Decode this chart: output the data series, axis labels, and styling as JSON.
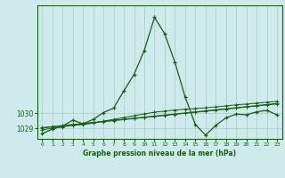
{
  "title": "Graphe pression niveau de la mer (hPa)",
  "background_color": "#ceeaea",
  "grid_color": "#aacccc",
  "line_color": "#1a5c1a",
  "xlim": [
    -0.5,
    23.5
  ],
  "ylim": [
    1028.3,
    1037.2
  ],
  "yticks": [
    1029,
    1030
  ],
  "xticks": [
    0,
    1,
    2,
    3,
    4,
    5,
    6,
    7,
    8,
    9,
    10,
    11,
    12,
    13,
    14,
    15,
    16,
    17,
    18,
    19,
    20,
    21,
    22,
    23
  ],
  "series1": [
    1028.65,
    1028.95,
    1029.15,
    1029.55,
    1029.3,
    1029.6,
    1030.05,
    1030.35,
    1031.5,
    1032.6,
    1034.2,
    1036.4,
    1035.3,
    1033.4,
    1031.1,
    1029.25,
    1028.55,
    1029.2,
    1029.7,
    1029.95,
    1029.9,
    1030.1,
    1030.2,
    1029.9
  ],
  "series2": [
    1029.05,
    1029.12,
    1029.19,
    1029.26,
    1029.33,
    1029.4,
    1029.47,
    1029.54,
    1029.61,
    1029.68,
    1029.75,
    1029.82,
    1029.89,
    1029.96,
    1030.03,
    1030.1,
    1030.17,
    1030.24,
    1030.31,
    1030.38,
    1030.45,
    1030.52,
    1030.59,
    1030.66
  ],
  "series3": [
    1029.02,
    1029.09,
    1029.16,
    1029.23,
    1029.3,
    1029.37,
    1029.44,
    1029.51,
    1029.58,
    1029.65,
    1029.72,
    1029.79,
    1029.86,
    1029.93,
    1030.0,
    1030.07,
    1030.14,
    1030.21,
    1030.28,
    1030.35,
    1030.42,
    1030.49,
    1030.56,
    1030.63
  ],
  "series4": [
    1028.9,
    1029.0,
    1029.1,
    1029.2,
    1029.25,
    1029.35,
    1029.48,
    1029.6,
    1029.72,
    1029.84,
    1029.96,
    1030.08,
    1030.15,
    1030.22,
    1030.28,
    1030.32,
    1030.37,
    1030.43,
    1030.5,
    1030.57,
    1030.62,
    1030.68,
    1030.74,
    1030.8
  ]
}
